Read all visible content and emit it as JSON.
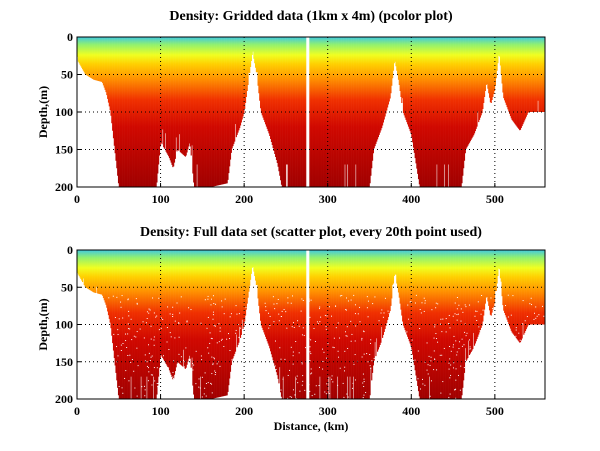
{
  "chart_data": [
    {
      "type": "heatmap",
      "title": "Density: Gridded data (1km x 4m) (pcolor plot)",
      "xlabel": "",
      "ylabel": "Depth,(m)",
      "xlim": [
        0,
        560
      ],
      "ylim": [
        200,
        0
      ],
      "xticks": [
        "0",
        "100",
        "200",
        "300",
        "400",
        "500"
      ],
      "yticks": [
        "0",
        "50",
        "100",
        "150",
        "200"
      ],
      "grid": true,
      "colormap": "jet",
      "data_gap_km": [
        274,
        278
      ],
      "seafloor_depth": {
        "x": [
          0,
          10,
          20,
          30,
          35,
          40,
          45,
          50,
          95,
          100,
          110,
          115,
          120,
          130,
          135,
          140,
          160,
          180,
          185,
          195,
          200,
          205,
          210,
          215,
          220,
          230,
          240,
          245,
          350,
          355,
          365,
          375,
          380,
          385,
          390,
          400,
          410,
          460,
          465,
          475,
          485,
          490,
          495,
          500,
          505,
          510,
          520,
          530,
          540,
          560
        ],
        "y": [
          30,
          50,
          57,
          60,
          75,
          100,
          150,
          200,
          200,
          140,
          160,
          175,
          150,
          160,
          140,
          200,
          200,
          195,
          150,
          120,
          100,
          60,
          20,
          50,
          100,
          130,
          170,
          200,
          200,
          150,
          120,
          80,
          30,
          60,
          100,
          130,
          200,
          200,
          150,
          130,
          100,
          60,
          90,
          70,
          20,
          80,
          110,
          125,
          100,
          100
        ]
      }
    },
    {
      "type": "scatter",
      "title": "Density: Full data set (scatter plot, every 20th point used)",
      "xlabel": "Distance, (km)",
      "ylabel": "Depth,(m)",
      "xlim": [
        0,
        560
      ],
      "ylim": [
        200,
        0
      ],
      "xticks": [
        "0",
        "100",
        "200",
        "300",
        "400",
        "500"
      ],
      "yticks": [
        "0",
        "50",
        "100",
        "150",
        "200"
      ],
      "grid": true,
      "colormap": "jet"
    }
  ]
}
